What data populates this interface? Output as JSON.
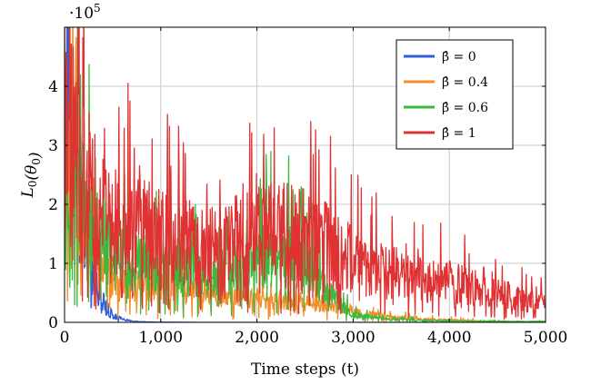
{
  "chart_data": {
    "type": "line",
    "title": "",
    "xlabel": "Time steps (t)",
    "ylabel": "L_0(θ_0)",
    "xlim": [
      0,
      5000
    ],
    "ylim": [
      0,
      500000
    ],
    "y_multiplier_label": "·10^5",
    "y_multiplier_value": 100000,
    "grid": true,
    "legend_position": "top-right",
    "x_ticks": [
      {
        "value": 0,
        "label": "0"
      },
      {
        "value": 1000,
        "label": "1,000"
      },
      {
        "value": 2000,
        "label": "2,000"
      },
      {
        "value": 3000,
        "label": "3,000"
      },
      {
        "value": 4000,
        "label": "4,000"
      },
      {
        "value": 5000,
        "label": "5,000"
      }
    ],
    "y_ticks": [
      {
        "value": 0,
        "label": "0"
      },
      {
        "value": 100000,
        "label": "1"
      },
      {
        "value": 200000,
        "label": "2"
      },
      {
        "value": 300000,
        "label": "3"
      },
      {
        "value": 400000,
        "label": "4"
      }
    ],
    "series": [
      {
        "name": "β̂ = 0",
        "color": "#2f5fd6",
        "x": [
          0,
          25,
          50,
          100,
          150,
          200,
          250,
          300,
          350,
          400,
          450,
          500,
          600,
          700,
          800,
          1000,
          1500,
          2000,
          3000,
          4000,
          5000
        ],
        "y": [
          150000,
          450000,
          380000,
          300000,
          230000,
          170000,
          120000,
          85000,
          55000,
          35000,
          22000,
          12000,
          5000,
          2000,
          800,
          300,
          0,
          0,
          0,
          0,
          0
        ]
      },
      {
        "name": "β̂ = 0.4",
        "color": "#f28e2b",
        "x": [
          0,
          50,
          100,
          150,
          200,
          250,
          300,
          400,
          500,
          600,
          800,
          1000,
          1200,
          1400,
          1600,
          1800,
          2000,
          2200,
          2400,
          2600,
          2800,
          3000,
          3100,
          3200,
          3400,
          3600,
          3800,
          4000,
          4200,
          4400,
          4600,
          4800,
          5000
        ],
        "y": [
          220000,
          300000,
          260000,
          200000,
          160000,
          130000,
          110000,
          85000,
          70000,
          62000,
          60000,
          60000,
          58000,
          52000,
          48000,
          45000,
          42000,
          40000,
          36000,
          33000,
          30000,
          20000,
          15000,
          12000,
          9000,
          7000,
          5000,
          4000,
          3000,
          2000,
          1500,
          1000,
          1000
        ]
      },
      {
        "name": "β̂ = 0.6",
        "color": "#3cb83c",
        "x": [
          0,
          50,
          100,
          150,
          200,
          300,
          400,
          500,
          600,
          800,
          1000,
          1200,
          1400,
          1600,
          1800,
          2000,
          2200,
          2400,
          2600,
          2800,
          3000,
          3200,
          3400,
          3600,
          3800,
          4000,
          4200,
          4400,
          4600,
          4800,
          5000
        ],
        "y": [
          150000,
          280000,
          260000,
          230000,
          200000,
          160000,
          130000,
          115000,
          105000,
          100000,
          95000,
          88000,
          82000,
          80000,
          100000,
          115000,
          120000,
          110000,
          80000,
          40000,
          12000,
          8000,
          5000,
          4000,
          3000,
          2500,
          2000,
          2000,
          1500,
          1500,
          1500
        ]
      },
      {
        "name": "β̂ = 1",
        "color": "#e03232",
        "x": [
          0,
          50,
          100,
          150,
          200,
          300,
          400,
          500,
          600,
          800,
          1000,
          1200,
          1400,
          1600,
          1800,
          2000,
          2200,
          2400,
          2600,
          2800,
          3000,
          3200,
          3400,
          3600,
          3800,
          4000,
          4200,
          4400,
          4600,
          4800,
          5000
        ],
        "y": [
          320000,
          350000,
          300000,
          270000,
          240000,
          200000,
          180000,
          170000,
          165000,
          160000,
          150000,
          140000,
          130000,
          125000,
          140000,
          150000,
          155000,
          150000,
          140000,
          125000,
          105000,
          95000,
          85000,
          75000,
          70000,
          70000,
          60000,
          55000,
          45000,
          35000,
          30000
        ]
      }
    ]
  }
}
